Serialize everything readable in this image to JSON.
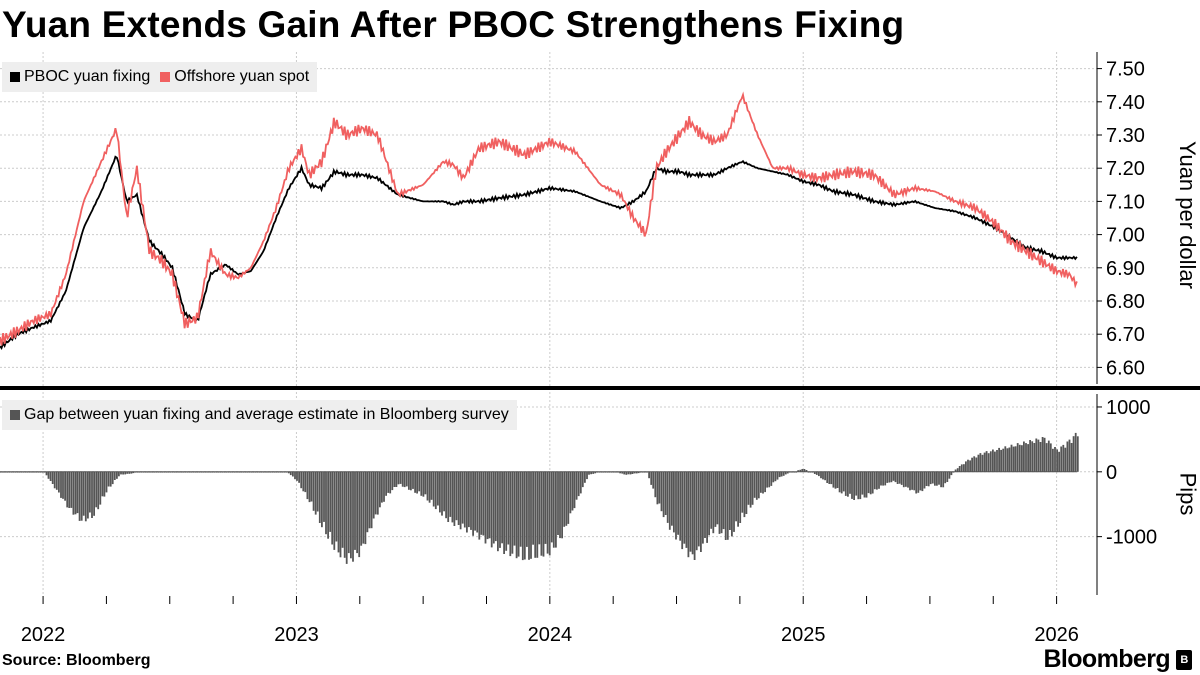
{
  "title": "Yuan Extends Gain After PBOC Strengthens Fixing",
  "source": "Source: Bloomberg",
  "brand": "Bloomberg",
  "brand_mark": "B",
  "colors": {
    "fixing": "#000000",
    "offshore": "#f06060",
    "gap_bars": "#555555",
    "grid": "#cccccc",
    "legend_bg": "#eeeeee",
    "divider": "#000000"
  },
  "chart_data": [
    {
      "type": "line",
      "title": "Yuan Extends Gain After PBOC Strengthens Fixing",
      "ylabel": "Yuan per dollar",
      "xlabel": "",
      "ylim": [
        6.55,
        7.55
      ],
      "yticks": [
        6.6,
        6.7,
        6.8,
        6.9,
        7.0,
        7.1,
        7.2,
        7.3,
        7.4,
        7.5
      ],
      "ytick_labels": [
        "6.60",
        "6.70",
        "6.80",
        "6.90",
        "7.00",
        "7.10",
        "7.20",
        "7.30",
        "7.40",
        "7.50"
      ],
      "xlim": [
        2021.83,
        2026.12
      ],
      "xtick_labels": [
        "2022",
        "2023",
        "2024",
        "2025",
        "2026"
      ],
      "xticks": [
        2022.0,
        2023.0,
        2024.0,
        2025.0,
        2026.0
      ],
      "legend": [
        "PBOC yuan fixing",
        "Offshore yuan spot"
      ],
      "legend_position": "top-left",
      "series": [
        {
          "name": "PBOC yuan fixing",
          "x": [
            2021.83,
            2021.9,
            2021.96,
            2022.03,
            2022.09,
            2022.16,
            2022.23,
            2022.29,
            2022.33,
            2022.37,
            2022.42,
            2022.47,
            2022.51,
            2022.56,
            2022.61,
            2022.66,
            2022.72,
            2022.77,
            2022.82,
            2022.87,
            2022.92,
            2022.97,
            2023.02,
            2023.05,
            2023.1,
            2023.15,
            2023.2,
            2023.26,
            2023.32,
            2023.4,
            2023.5,
            2023.58,
            2023.62,
            2023.66,
            2023.72,
            2023.8,
            2023.9,
            2024.0,
            2024.1,
            2024.2,
            2024.28,
            2024.33,
            2024.38,
            2024.42,
            2024.46,
            2024.51,
            2024.55,
            2024.6,
            2024.65,
            2024.7,
            2024.76,
            2024.82,
            2024.88,
            2024.94,
            2025.0,
            2025.06,
            2025.12,
            2025.2,
            2025.28,
            2025.36,
            2025.44,
            2025.52,
            2025.6,
            2025.68,
            2025.76,
            2025.82,
            2025.88,
            2025.94,
            2026.0,
            2026.05,
            2026.08
          ],
          "values": [
            6.66,
            6.7,
            6.72,
            6.74,
            6.83,
            7.02,
            7.13,
            7.24,
            7.1,
            7.12,
            6.98,
            6.94,
            6.9,
            6.76,
            6.74,
            6.88,
            6.91,
            6.88,
            6.89,
            6.95,
            7.05,
            7.14,
            7.2,
            7.15,
            7.14,
            7.19,
            7.18,
            7.18,
            7.17,
            7.12,
            7.1,
            7.1,
            7.09,
            7.1,
            7.1,
            7.11,
            7.12,
            7.14,
            7.13,
            7.1,
            7.08,
            7.1,
            7.13,
            7.2,
            7.19,
            7.19,
            7.18,
            7.18,
            7.18,
            7.2,
            7.22,
            7.2,
            7.19,
            7.18,
            7.16,
            7.15,
            7.13,
            7.12,
            7.1,
            7.09,
            7.1,
            7.08,
            7.07,
            7.05,
            7.02,
            6.99,
            6.96,
            6.95,
            6.93,
            6.93,
            6.93
          ]
        },
        {
          "name": "Offshore yuan spot",
          "x": [
            2021.83,
            2021.9,
            2021.96,
            2022.03,
            2022.09,
            2022.16,
            2022.23,
            2022.29,
            2022.33,
            2022.37,
            2022.42,
            2022.47,
            2022.51,
            2022.56,
            2022.61,
            2022.66,
            2022.72,
            2022.77,
            2022.82,
            2022.87,
            2022.92,
            2022.97,
            2023.02,
            2023.05,
            2023.1,
            2023.15,
            2023.2,
            2023.26,
            2023.32,
            2023.4,
            2023.5,
            2023.58,
            2023.62,
            2023.66,
            2023.72,
            2023.8,
            2023.9,
            2024.0,
            2024.1,
            2024.2,
            2024.28,
            2024.33,
            2024.38,
            2024.42,
            2024.46,
            2024.51,
            2024.55,
            2024.6,
            2024.65,
            2024.7,
            2024.76,
            2024.82,
            2024.88,
            2024.94,
            2025.0,
            2025.06,
            2025.12,
            2025.2,
            2025.28,
            2025.36,
            2025.44,
            2025.52,
            2025.6,
            2025.68,
            2025.76,
            2025.82,
            2025.88,
            2025.94,
            2026.0,
            2026.05,
            2026.08
          ],
          "values": [
            6.68,
            6.71,
            6.74,
            6.76,
            6.88,
            7.1,
            7.22,
            7.32,
            7.05,
            7.2,
            6.95,
            6.92,
            6.88,
            6.73,
            6.75,
            6.95,
            6.88,
            6.87,
            6.9,
            6.98,
            7.08,
            7.2,
            7.26,
            7.18,
            7.22,
            7.34,
            7.3,
            7.32,
            7.3,
            7.12,
            7.15,
            7.22,
            7.21,
            7.17,
            7.26,
            7.28,
            7.24,
            7.28,
            7.25,
            7.15,
            7.12,
            7.05,
            7.0,
            7.2,
            7.25,
            7.3,
            7.34,
            7.3,
            7.28,
            7.3,
            7.42,
            7.3,
            7.2,
            7.2,
            7.18,
            7.17,
            7.18,
            7.19,
            7.18,
            7.12,
            7.14,
            7.13,
            7.1,
            7.08,
            7.03,
            6.98,
            6.95,
            6.92,
            6.89,
            6.88,
            6.85
          ]
        }
      ]
    },
    {
      "type": "bar",
      "title": "Gap between yuan fixing and average estimate in Bloomberg survey",
      "ylabel": "Pips",
      "xlabel": "",
      "ylim": [
        -1900,
        1200
      ],
      "yticks": [
        -1000,
        0,
        1000
      ],
      "ytick_labels": [
        "-1000",
        "0",
        "1000"
      ],
      "xlim": [
        2021.83,
        2026.12
      ],
      "legend": [
        "Gap between yuan fixing and average estimate in Bloomberg survey"
      ],
      "legend_position": "top-left",
      "series": [
        {
          "name": "Gap between yuan fixing and average estimate in Bloomberg survey",
          "x": [
            2021.83,
            2022.0,
            2022.05,
            2022.1,
            2022.15,
            2022.2,
            2022.25,
            2022.3,
            2022.4,
            2022.6,
            2022.8,
            2022.96,
            2023.0,
            2023.05,
            2023.1,
            2023.15,
            2023.2,
            2023.25,
            2023.3,
            2023.35,
            2023.4,
            2023.5,
            2023.6,
            2023.7,
            2023.8,
            2023.9,
            2024.0,
            2024.05,
            2024.1,
            2024.15,
            2024.2,
            2024.25,
            2024.3,
            2024.38,
            2024.42,
            2024.47,
            2024.52,
            2024.56,
            2024.6,
            2024.65,
            2024.7,
            2024.75,
            2024.8,
            2024.85,
            2024.9,
            2024.95,
            2025.0,
            2025.05,
            2025.1,
            2025.15,
            2025.2,
            2025.25,
            2025.3,
            2025.35,
            2025.4,
            2025.45,
            2025.5,
            2025.55,
            2025.6,
            2025.65,
            2025.7,
            2025.75,
            2025.8,
            2025.85,
            2025.9,
            2025.95,
            2026.0,
            2026.03,
            2026.06,
            2026.08
          ],
          "values": [
            0,
            0,
            -300,
            -600,
            -800,
            -700,
            -300,
            -50,
            0,
            0,
            0,
            0,
            -150,
            -500,
            -900,
            -1250,
            -1450,
            -1300,
            -800,
            -400,
            -200,
            -400,
            -800,
            -1000,
            -1250,
            -1400,
            -1300,
            -1000,
            -500,
            -50,
            0,
            0,
            -50,
            0,
            -500,
            -900,
            -1200,
            -1400,
            -1200,
            -900,
            -1100,
            -800,
            -500,
            -300,
            -100,
            0,
            50,
            -50,
            -200,
            -350,
            -450,
            -400,
            -250,
            -150,
            -250,
            -350,
            -200,
            -250,
            50,
            200,
            300,
            350,
            400,
            450,
            500,
            550,
            350,
            450,
            550,
            650
          ]
        }
      ]
    }
  ]
}
